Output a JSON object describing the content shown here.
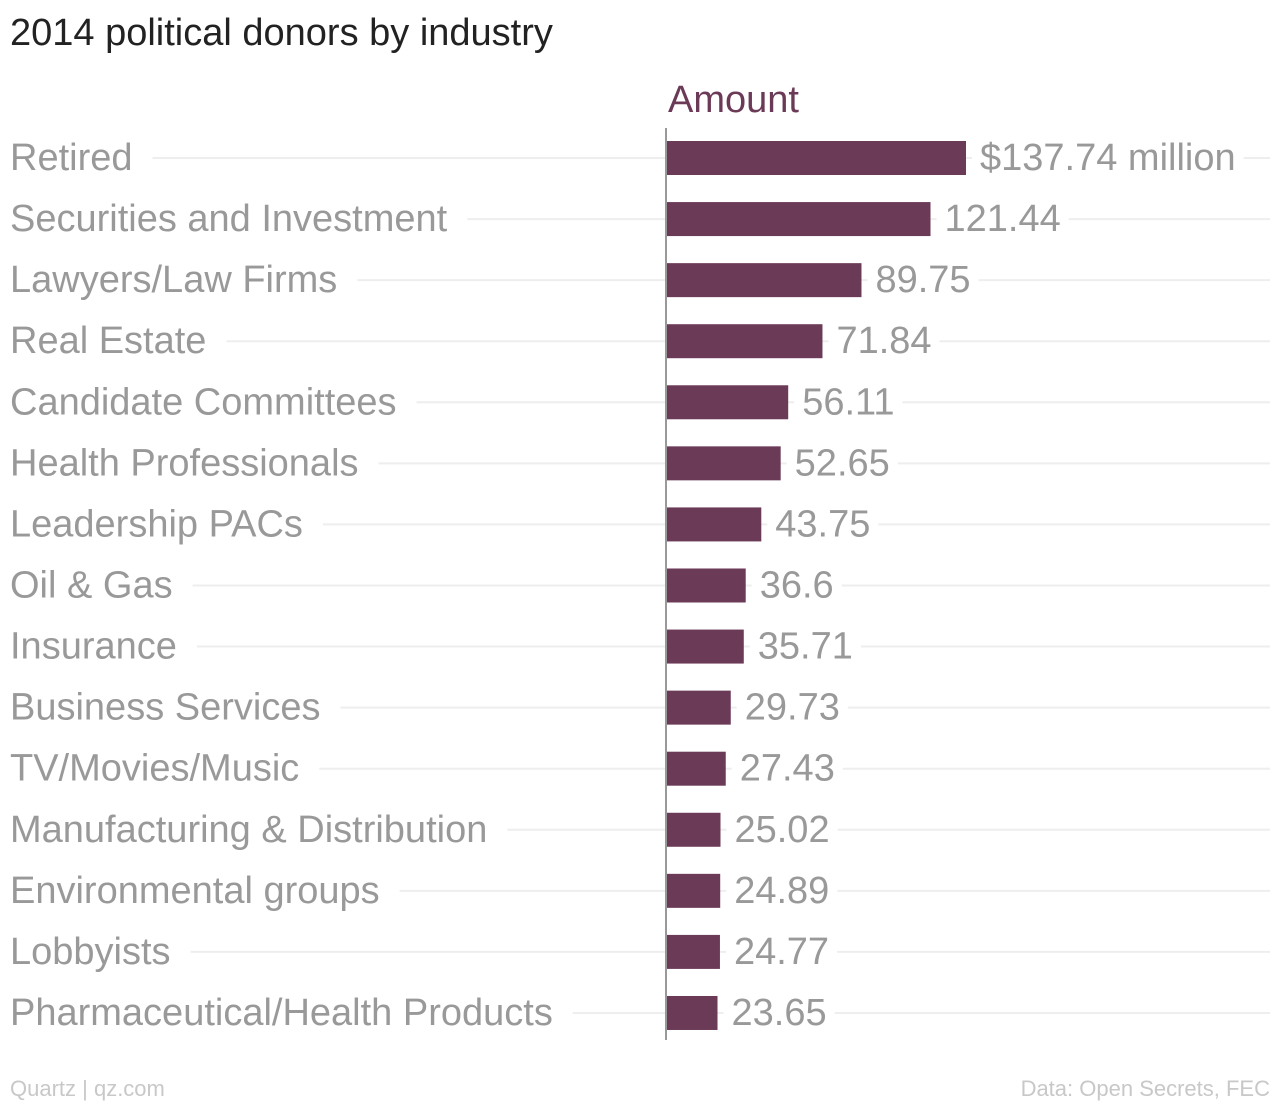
{
  "colors": {
    "bar": "#6b3a57",
    "series_label": "#6b3a57",
    "title": "#222222",
    "category_label": "#999999",
    "value_label": "#999999",
    "gridline": "#eeeeee",
    "axis": "#999999",
    "footer": "#c8c8c8"
  },
  "footer": {
    "source_left": "Quartz | qz.com",
    "source_right": "Data: Open Secrets, FEC"
  },
  "chart_data": {
    "type": "bar",
    "orientation": "horizontal",
    "title": "2014 political donors by industry",
    "categories": [
      "Retired",
      "Securities and Investment",
      "Lawyers/Law Firms",
      "Real Estate",
      "Candidate Committees",
      "Health Professionals",
      "Leadership PACs",
      "Oil & Gas",
      "Insurance",
      "Business Services",
      "TV/Movies/Music",
      "Manufacturing & Distribution",
      "Environmental groups",
      "Lobbyists",
      "Pharmaceutical/Health Products"
    ],
    "series": [
      {
        "name": "Amount",
        "values": [
          137.74,
          121.44,
          89.75,
          71.84,
          56.11,
          52.65,
          43.75,
          36.6,
          35.71,
          29.73,
          27.43,
          25.02,
          24.89,
          24.77,
          23.65
        ]
      }
    ],
    "value_labels": [
      "$137.74 million",
      "121.44",
      "89.75",
      "71.84",
      "56.11",
      "52.65",
      "43.75",
      "36.6",
      "35.71",
      "29.73",
      "27.43",
      "25.02",
      "24.89",
      "24.77",
      "23.65"
    ],
    "xlim": [
      0,
      137.74
    ],
    "grid": true,
    "legend": "none"
  }
}
